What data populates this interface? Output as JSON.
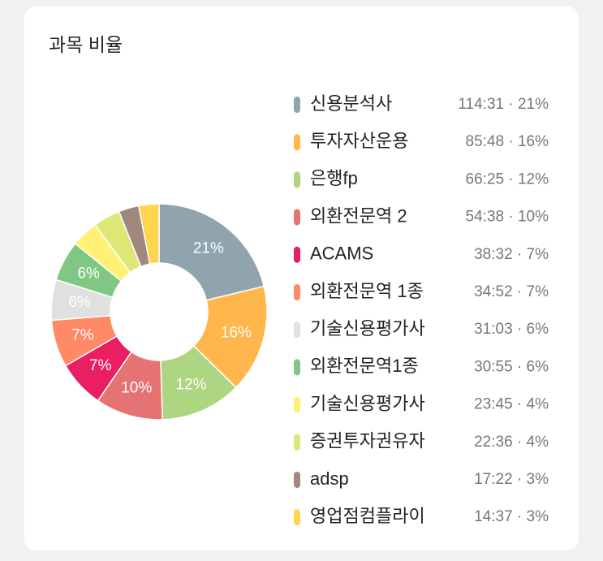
{
  "chart_data": {
    "type": "pie",
    "title": "과목 비율",
    "donut": true,
    "categories": [
      "신용분석사",
      "투자자산운용",
      "은행fp",
      "외환전문역 2",
      "ACAMS",
      "외환전문역 1종",
      "기술신용평가사",
      "외환전문역1종",
      "기술신용평가사",
      "증권투자권유자",
      "adsp",
      "영업점컴플라이"
    ],
    "values": [
      21,
      16,
      12,
      10,
      7,
      7,
      6,
      6,
      4,
      4,
      3,
      3
    ],
    "value_labels": [
      "21%",
      "16%",
      "12%",
      "10%",
      "7%",
      "7%",
      "6%",
      "6%",
      null,
      null,
      null,
      null
    ],
    "legend_details": [
      "114:31 · 21%",
      "85:48 · 16%",
      "66:25 · 12%",
      "54:38 · 10%",
      "38:32 · 7%",
      "34:52 · 7%",
      "31:03 · 6%",
      "30:55 · 6%",
      "23:45 · 4%",
      "22:36 · 4%",
      "17:22 · 3%",
      "14:37 · 3%"
    ],
    "colors": [
      "#90a4ae",
      "#ffb74d",
      "#aed581",
      "#e57373",
      "#e91e63",
      "#ff8a65",
      "#e0e0e0",
      "#81c784",
      "#fff176",
      "#dce775",
      "#a1887f",
      "#ffd54f"
    ]
  }
}
